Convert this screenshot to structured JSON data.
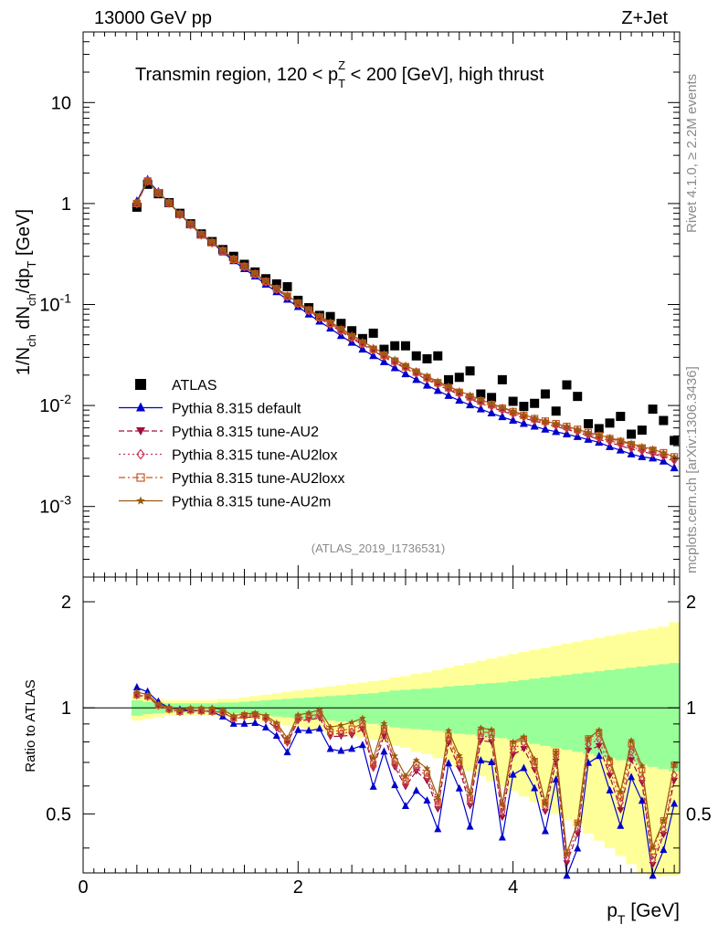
{
  "header": {
    "left": "13000 GeV pp",
    "right": "Z+Jet"
  },
  "side_labels": {
    "rivet": "Rivet 4.1.0, ≥ 2.2M events",
    "mcplots": "mcplots.cern.ch [arXiv:1306.3436]"
  },
  "chart_data": [
    {
      "type": "scatter",
      "panel": "main",
      "title": "Transmin region, 120 < p_T^Z < 200 [GeV], high thrust",
      "title_parts": {
        "a": "Transmin region, 120 < p",
        "sub": "T",
        "sup": "Z",
        "b": " < 200 [GeV], high thrust"
      },
      "ylabel": "1/N_ch dN_ch/dp_T [GeV]",
      "ylabel_parts": {
        "a": "1/N",
        "s1": "ch",
        "b": " dN",
        "s2": "ch",
        "c": "/dp",
        "s3": "T",
        "d": " [GeV]"
      },
      "yscale": "log",
      "ylim": [
        0.0002,
        50
      ],
      "xlim": [
        0,
        5.55
      ],
      "yticks": [
        {
          "v": 0.001,
          "base": "10",
          "exp": "-3"
        },
        {
          "v": 0.01,
          "base": "10",
          "exp": "-2"
        },
        {
          "v": 0.1,
          "base": "10",
          "exp": "-1"
        },
        {
          "v": 1,
          "label": "1"
        },
        {
          "v": 10,
          "label": "10"
        }
      ],
      "legend_position": "left-middle",
      "watermark": "(ATLAS_2019_I1736531)",
      "x": [
        0.5,
        0.6,
        0.7,
        0.8,
        0.9,
        1.0,
        1.1,
        1.2,
        1.3,
        1.4,
        1.5,
        1.6,
        1.7,
        1.8,
        1.9,
        2.0,
        2.1,
        2.2,
        2.3,
        2.4,
        2.5,
        2.6,
        2.7,
        2.8,
        2.9,
        3.0,
        3.1,
        3.2,
        3.3,
        3.4,
        3.5,
        3.6,
        3.7,
        3.8,
        3.9,
        4.0,
        4.1,
        4.2,
        4.3,
        4.4,
        4.5,
        4.6,
        4.7,
        4.8,
        4.9,
        5.0,
        5.1,
        5.2,
        5.3,
        5.4,
        5.5
      ],
      "series": [
        {
          "name": "ATLAS",
          "marker": "square",
          "color": "#000000",
          "values": [
            0.92,
            1.55,
            1.25,
            1.02,
            0.8,
            0.63,
            0.5,
            0.42,
            0.35,
            0.3,
            0.25,
            0.21,
            0.18,
            0.16,
            0.15,
            0.11,
            0.093,
            0.078,
            0.076,
            0.065,
            0.055,
            0.046,
            0.052,
            0.036,
            0.039,
            0.039,
            0.031,
            0.029,
            0.031,
            0.018,
            0.019,
            0.022,
            0.013,
            0.012,
            0.018,
            0.011,
            0.0098,
            0.0105,
            0.013,
            0.0088,
            0.016,
            0.0123,
            0.0066,
            0.0059,
            0.0067,
            0.0078,
            0.0052,
            0.0057,
            0.0092,
            0.0071,
            0.0045
          ]
        },
        {
          "name": "Pythia 8.315 default",
          "marker": "triangle-up",
          "color": "#0000cc",
          "values": [
            1.05,
            1.72,
            1.3,
            1.02,
            0.79,
            0.62,
            0.49,
            0.41,
            0.33,
            0.27,
            0.225,
            0.19,
            0.158,
            0.133,
            0.112,
            0.095,
            0.08,
            0.068,
            0.058,
            0.049,
            0.042,
            0.036,
            0.031,
            0.027,
            0.0235,
            0.0205,
            0.018,
            0.0158,
            0.014,
            0.0125,
            0.0112,
            0.0101,
            0.0092,
            0.0084,
            0.0077,
            0.0071,
            0.0066,
            0.0062,
            0.0058,
            0.0055,
            0.0052,
            0.0049,
            0.0046,
            0.0043,
            0.0039,
            0.0036,
            0.0033,
            0.0031,
            0.003,
            0.0028,
            0.0024
          ]
        },
        {
          "name": "Pythia 8.315 tune-AU2",
          "marker": "triangle-down",
          "color": "#a0103a",
          "values": [
            1.0,
            1.66,
            1.27,
            1.01,
            0.78,
            0.62,
            0.49,
            0.41,
            0.34,
            0.28,
            0.235,
            0.198,
            0.166,
            0.14,
            0.119,
            0.101,
            0.086,
            0.073,
            0.063,
            0.054,
            0.046,
            0.04,
            0.035,
            0.03,
            0.0265,
            0.0233,
            0.0205,
            0.018,
            0.016,
            0.0143,
            0.0128,
            0.0116,
            0.0105,
            0.0096,
            0.0088,
            0.0081,
            0.0075,
            0.007,
            0.0066,
            0.0062,
            0.0058,
            0.0054,
            0.005,
            0.0046,
            0.0043,
            0.004,
            0.0037,
            0.0035,
            0.0033,
            0.0031,
            0.0028
          ]
        },
        {
          "name": "Pythia 8.315 tune-AU2lox",
          "marker": "diamond",
          "color": "#c83a5a",
          "values": [
            1.0,
            1.67,
            1.27,
            1.01,
            0.78,
            0.62,
            0.49,
            0.41,
            0.34,
            0.28,
            0.237,
            0.2,
            0.168,
            0.142,
            0.12,
            0.102,
            0.087,
            0.074,
            0.064,
            0.055,
            0.047,
            0.041,
            0.0355,
            0.031,
            0.027,
            0.0238,
            0.021,
            0.0185,
            0.0164,
            0.0147,
            0.0132,
            0.0119,
            0.0108,
            0.0099,
            0.0091,
            0.0084,
            0.0078,
            0.0072,
            0.0068,
            0.0064,
            0.006,
            0.0056,
            0.0052,
            0.0048,
            0.0045,
            0.0042,
            0.0039,
            0.0036,
            0.0034,
            0.0032,
            0.0029
          ]
        },
        {
          "name": "Pythia 8.315 tune-AU2loxx",
          "marker": "open-square",
          "color": "#cc5522",
          "values": [
            1.0,
            1.67,
            1.27,
            1.01,
            0.78,
            0.62,
            0.49,
            0.41,
            0.34,
            0.28,
            0.238,
            0.201,
            0.169,
            0.143,
            0.121,
            0.103,
            0.088,
            0.075,
            0.065,
            0.056,
            0.048,
            0.0415,
            0.036,
            0.0315,
            0.0275,
            0.0242,
            0.0214,
            0.0189,
            0.0168,
            0.015,
            0.0135,
            0.0122,
            0.0111,
            0.0102,
            0.0094,
            0.0087,
            0.008,
            0.0074,
            0.007,
            0.0066,
            0.0062,
            0.0058,
            0.0054,
            0.005,
            0.0047,
            0.0044,
            0.0041,
            0.0038,
            0.0036,
            0.0034,
            0.0031
          ]
        },
        {
          "name": "Pythia 8.315 tune-AU2m",
          "marker": "star",
          "color": "#9a5a10",
          "values": [
            1.02,
            1.69,
            1.28,
            1.02,
            0.79,
            0.63,
            0.5,
            0.42,
            0.345,
            0.285,
            0.24,
            0.203,
            0.171,
            0.145,
            0.123,
            0.105,
            0.09,
            0.077,
            0.067,
            0.058,
            0.05,
            0.043,
            0.0375,
            0.0325,
            0.0285,
            0.025,
            0.022,
            0.0195,
            0.0173,
            0.0155,
            0.0139,
            0.0126,
            0.0114,
            0.0104,
            0.0096,
            0.0088,
            0.0081,
            0.0075,
            0.007,
            0.0066,
            0.0062,
            0.0058,
            0.0054,
            0.0051,
            0.0048,
            0.0045,
            0.0042,
            0.0039,
            0.0037,
            0.0034,
            0.0031
          ]
        }
      ]
    },
    {
      "type": "line",
      "panel": "ratio",
      "ylabel": "Ratio to ATLAS",
      "xlabel": "p_T [GeV]",
      "xlabel_parts": {
        "a": "p",
        "sub": "T",
        "b": " [GeV]"
      },
      "yscale": "log",
      "ylim": [
        0.34,
        2.35
      ],
      "xlim": [
        0,
        5.55
      ],
      "xticks": [
        {
          "v": 0,
          "label": "0"
        },
        {
          "v": 2,
          "label": "2"
        },
        {
          "v": 4,
          "label": "4"
        }
      ],
      "yticks": [
        {
          "v": 0.5,
          "label": "0.5"
        },
        {
          "v": 1,
          "label": "1"
        },
        {
          "v": 2,
          "label": "2"
        }
      ],
      "bin_edges": [
        0.45,
        0.55,
        0.65,
        0.75,
        0.85,
        0.95,
        1.05,
        1.15,
        1.25,
        1.35,
        1.45,
        1.55,
        1.65,
        1.75,
        1.85,
        1.95,
        2.05,
        2.15,
        2.25,
        2.35,
        2.45,
        2.55,
        2.65,
        2.75,
        2.85,
        2.95,
        3.05,
        3.15,
        3.25,
        3.35,
        3.45,
        3.55,
        3.65,
        3.75,
        3.85,
        3.95,
        4.05,
        4.15,
        4.25,
        4.35,
        4.45,
        4.55,
        4.65,
        4.75,
        4.85,
        4.95,
        5.05,
        5.15,
        5.25,
        5.35,
        5.45,
        5.55
      ],
      "band_stat": [
        0.05,
        0.04,
        0.035,
        0.03,
        0.03,
        0.03,
        0.03,
        0.03,
        0.035,
        0.035,
        0.04,
        0.045,
        0.05,
        0.055,
        0.06,
        0.065,
        0.07,
        0.075,
        0.08,
        0.085,
        0.09,
        0.095,
        0.1,
        0.11,
        0.12,
        0.125,
        0.13,
        0.135,
        0.14,
        0.15,
        0.155,
        0.16,
        0.17,
        0.175,
        0.18,
        0.19,
        0.2,
        0.21,
        0.22,
        0.23,
        0.24,
        0.25,
        0.26,
        0.27,
        0.28,
        0.29,
        0.3,
        0.31,
        0.32,
        0.33,
        0.34
      ],
      "band_total": [
        0.08,
        0.07,
        0.06,
        0.05,
        0.05,
        0.05,
        0.05,
        0.05,
        0.06,
        0.06,
        0.07,
        0.08,
        0.09,
        0.1,
        0.11,
        0.12,
        0.13,
        0.14,
        0.15,
        0.16,
        0.17,
        0.18,
        0.19,
        0.2,
        0.22,
        0.23,
        0.25,
        0.26,
        0.28,
        0.3,
        0.32,
        0.34,
        0.36,
        0.38,
        0.4,
        0.42,
        0.44,
        0.46,
        0.48,
        0.5,
        0.52,
        0.54,
        0.56,
        0.58,
        0.6,
        0.62,
        0.64,
        0.66,
        0.68,
        0.7,
        0.75
      ],
      "band_colors": {
        "stat": "#99ff99",
        "total": "#ffff99"
      }
    }
  ]
}
